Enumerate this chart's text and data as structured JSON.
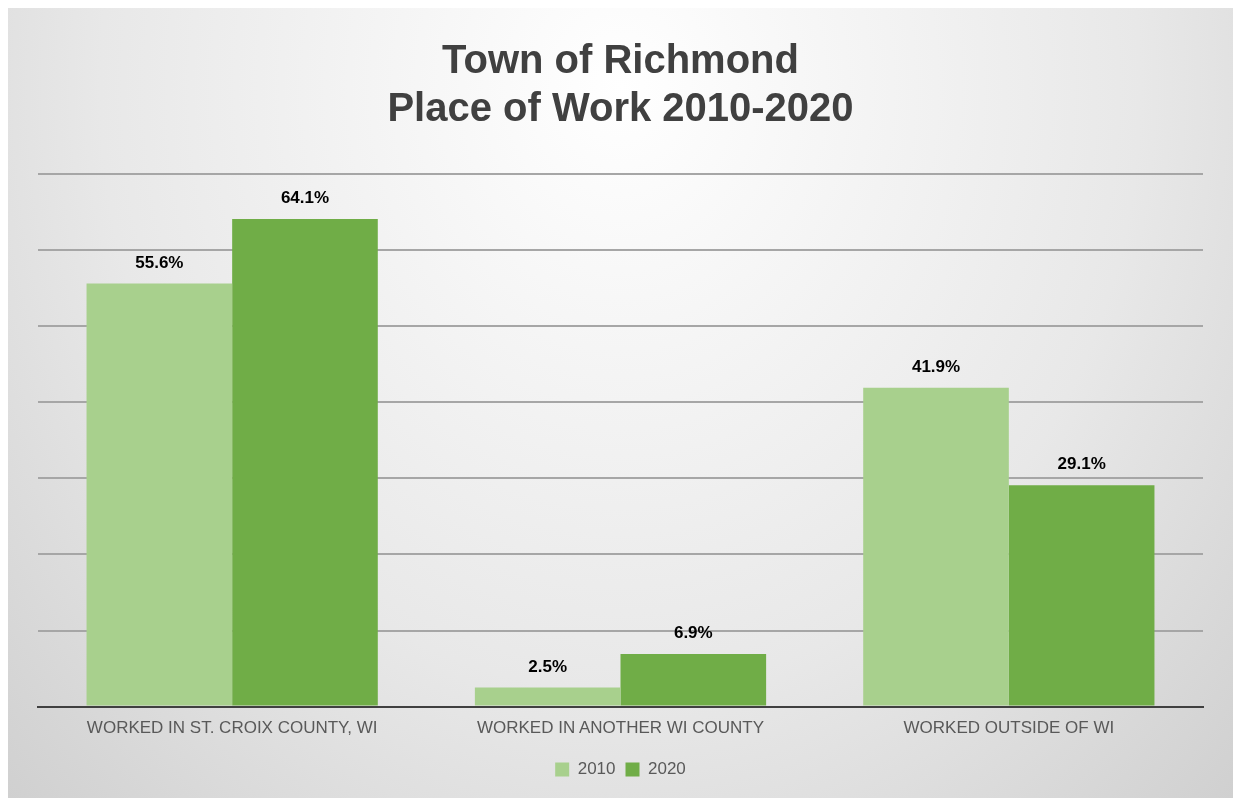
{
  "chart_data": {
    "type": "bar",
    "title": "Town of Richmond\nPlace of Work 2010-2020",
    "categories": [
      "WORKED IN ST. CROIX COUNTY, WI",
      "WORKED IN ANOTHER WI COUNTY",
      "WORKED OUTSIDE OF WI"
    ],
    "series": [
      {
        "name": "2010",
        "color": "#a8d08d",
        "values": [
          55.6,
          2.5,
          41.9
        ],
        "value_labels": [
          "55.6%",
          "2.5%",
          "41.9%"
        ]
      },
      {
        "name": "2020",
        "color": "#70ad47",
        "values": [
          64.1,
          6.9,
          29.1
        ],
        "value_labels": [
          "64.1%",
          "6.9%",
          "29.1%"
        ]
      }
    ],
    "ylim": [
      0,
      70
    ],
    "yticks": [
      {
        "value": 0,
        "label": null
      },
      {
        "value": 10,
        "label": null
      },
      {
        "value": 20,
        "label": null
      },
      {
        "value": 30,
        "label": null
      },
      {
        "value": 40,
        "label": null
      },
      {
        "value": 50,
        "label": null
      },
      {
        "value": 60,
        "label": null
      },
      {
        "value": 70,
        "label": null
      }
    ],
    "tick_labels": "x",
    "grid": "y",
    "legend": "bottom"
  }
}
